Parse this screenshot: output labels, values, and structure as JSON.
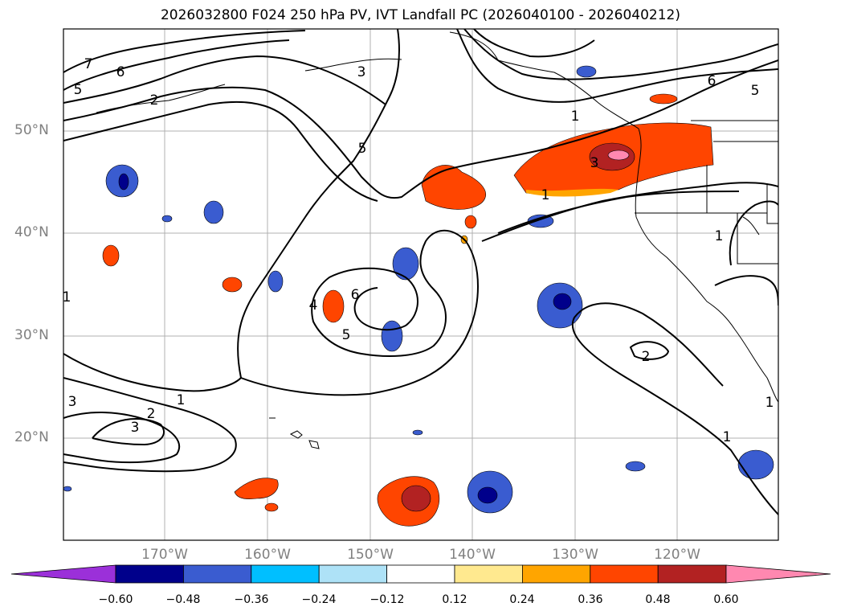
{
  "title": "2026032800 F024 250 hPa PV, IVT Landfall PC (2026040100 - 2026040212)",
  "lat_labels": [
    "50°N",
    "40°N",
    "30°N",
    "20°N"
  ],
  "lon_labels": [
    "170°W",
    "160°W",
    "150°W",
    "140°W",
    "130°W",
    "120°W"
  ],
  "contour_labels": [
    "7",
    "6",
    "5",
    "2",
    "3",
    "5",
    "6",
    "5",
    "4",
    "6",
    "5",
    "1",
    "3",
    "1",
    "2",
    "3",
    "1",
    "2",
    "1",
    "3",
    "1",
    "1",
    "1"
  ],
  "colorbar": {
    "ticks": [
      "−0.60",
      "−0.48",
      "−0.36",
      "−0.24",
      "−0.12",
      "0.12",
      "0.24",
      "0.36",
      "0.48",
      "0.60"
    ],
    "colors": [
      "#9b30d9",
      "#00008b",
      "#3a5cd0",
      "#00bfff",
      "#aee2f7",
      "#ffffff",
      "#ffe98f",
      "#ffa500",
      "#ff4500",
      "#b22222",
      "#ff88b0"
    ]
  },
  "colors": {
    "frame": "#000000",
    "grid": "#b0b0b0",
    "tick_text": "#808080"
  }
}
